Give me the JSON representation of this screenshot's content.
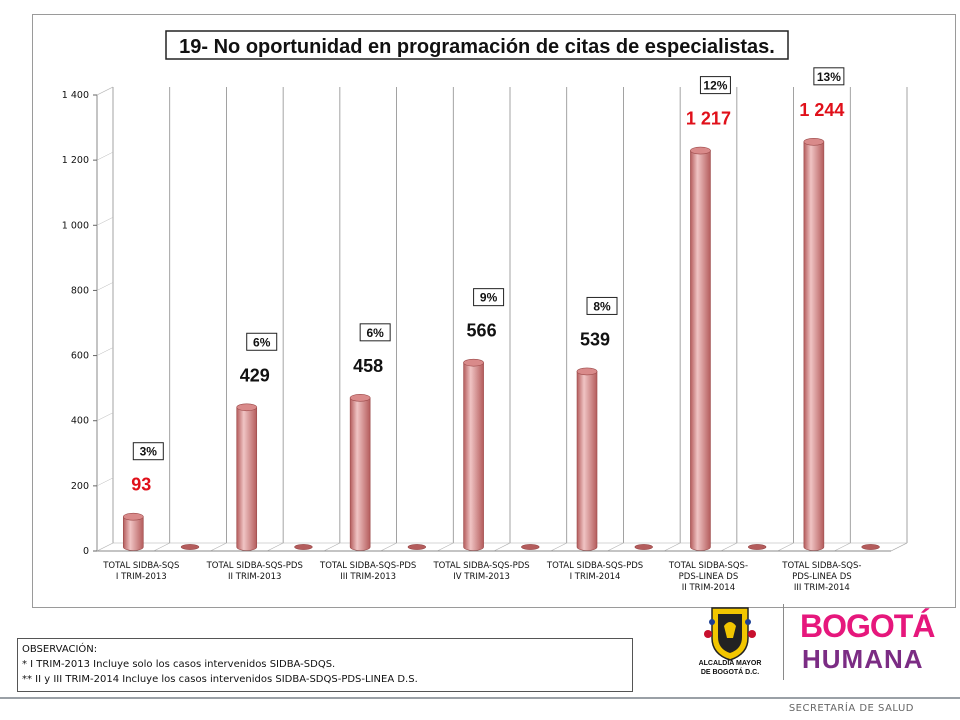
{
  "chart_data": {
    "type": "bar",
    "title": "19- No oportunidad en programación de citas de especialistas.",
    "xlabel": "",
    "ylabel": "",
    "ylim": [
      0,
      1400
    ],
    "yticks": [
      0,
      200,
      400,
      600,
      800,
      1000,
      1200,
      1400
    ],
    "ytick_labels": [
      "0",
      "200",
      "400",
      "600",
      "800",
      "1 000",
      "1 200",
      "1 400"
    ],
    "grid": true,
    "style": "3d-cylinder",
    "categories": [
      [
        "TOTAL SIDBA-SQS",
        "I TRIM-2013"
      ],
      [
        "TOTAL SIDBA-SQS-PDS",
        "II TRIM-2013"
      ],
      [
        "TOTAL SIDBA-SQS-PDS",
        "III TRIM-2013"
      ],
      [
        "TOTAL SIDBA-SQS-PDS",
        "IV TRIM-2013"
      ],
      [
        "TOTAL SIDBA-SQS-PDS",
        "I TRIM-2014"
      ],
      [
        "TOTAL SIDBA-SQS-",
        "PDS-LINEA DS",
        "II TRIM-2014"
      ],
      [
        "TOTAL SIDBA-SQS-",
        "PDS-LINEA DS",
        "III TRIM-2014"
      ]
    ],
    "values": [
      93,
      429,
      458,
      566,
      539,
      1217,
      1244
    ],
    "value_labels": [
      "93",
      "429",
      "458",
      "566",
      "539",
      "1 217",
      "1 244"
    ],
    "percent_labels": [
      "3%",
      "6%",
      "6%",
      "9%",
      "8%",
      "12%",
      "13%"
    ],
    "secondary_values": [
      0,
      0,
      0,
      0,
      0,
      0,
      0
    ],
    "colors": {
      "bar": "#d98a8a",
      "bar_dark": "#b45c5c",
      "bar_light": "#f0c4c4",
      "label_highlight": "#e0101a",
      "label_normal": "#111111",
      "grid": "#8c8c8c"
    },
    "highlighted_labels": [
      0,
      5,
      6
    ]
  },
  "observation": {
    "heading": "OBSERVACIÓN:",
    "line1": "* I TRIM-2013 Incluye solo los casos intervenidos SIDBA-SDQS.",
    "line2": "** II y III TRIM-2014 Incluye los casos intervenidos SIDBA-SDQS-PDS-LINEA D.S."
  },
  "logos": {
    "alcaldia": "ALCALDÍA MAYOR DE BOGOTÁ D.C.",
    "bogota_line1": "BOGOTÁ",
    "bogota_line2": "HUMANA"
  },
  "footer": {
    "text": "SECRETARÍA DE SALUD"
  }
}
